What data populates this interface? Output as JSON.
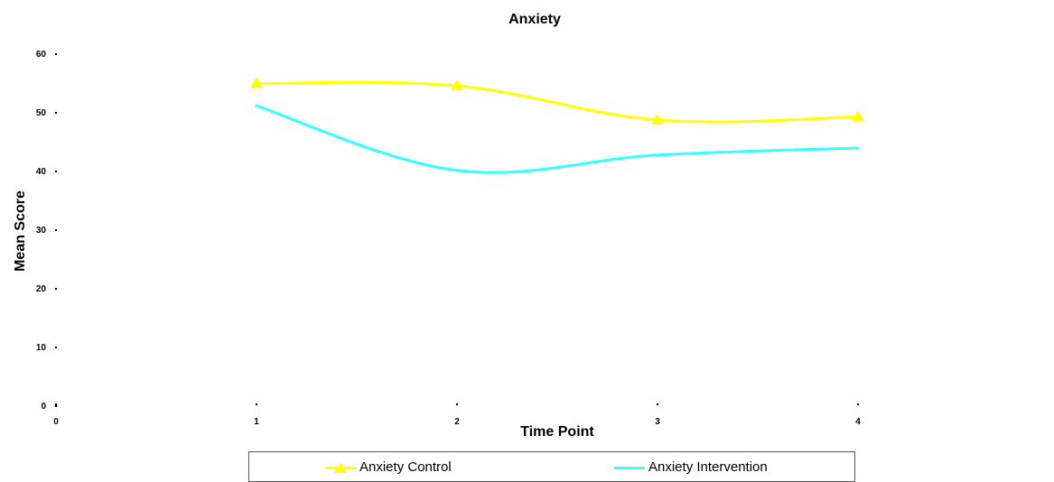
{
  "chart_data": {
    "type": "line",
    "title": "Anxiety",
    "xlabel": "Time Point",
    "ylabel": "Mean Score",
    "x": [
      1,
      2,
      3,
      4
    ],
    "xticks": [
      "0",
      "1",
      "2",
      "3",
      "4"
    ],
    "yticks": [
      "0",
      "10",
      "20",
      "30",
      "40",
      "50",
      "60"
    ],
    "xlim": [
      0,
      4
    ],
    "ylim": [
      0,
      60
    ],
    "grid": false,
    "legend_position": "bottom",
    "series": [
      {
        "name": "Anxiety Control",
        "values": [
          55,
          54.6,
          48.8,
          49.3
        ],
        "color": "#ffff00",
        "marker": "triangle"
      },
      {
        "name": "Anxiety Intervention",
        "values": [
          51.2,
          40.2,
          42.8,
          44
        ],
        "color": "#33ffff",
        "marker": "none"
      }
    ]
  }
}
